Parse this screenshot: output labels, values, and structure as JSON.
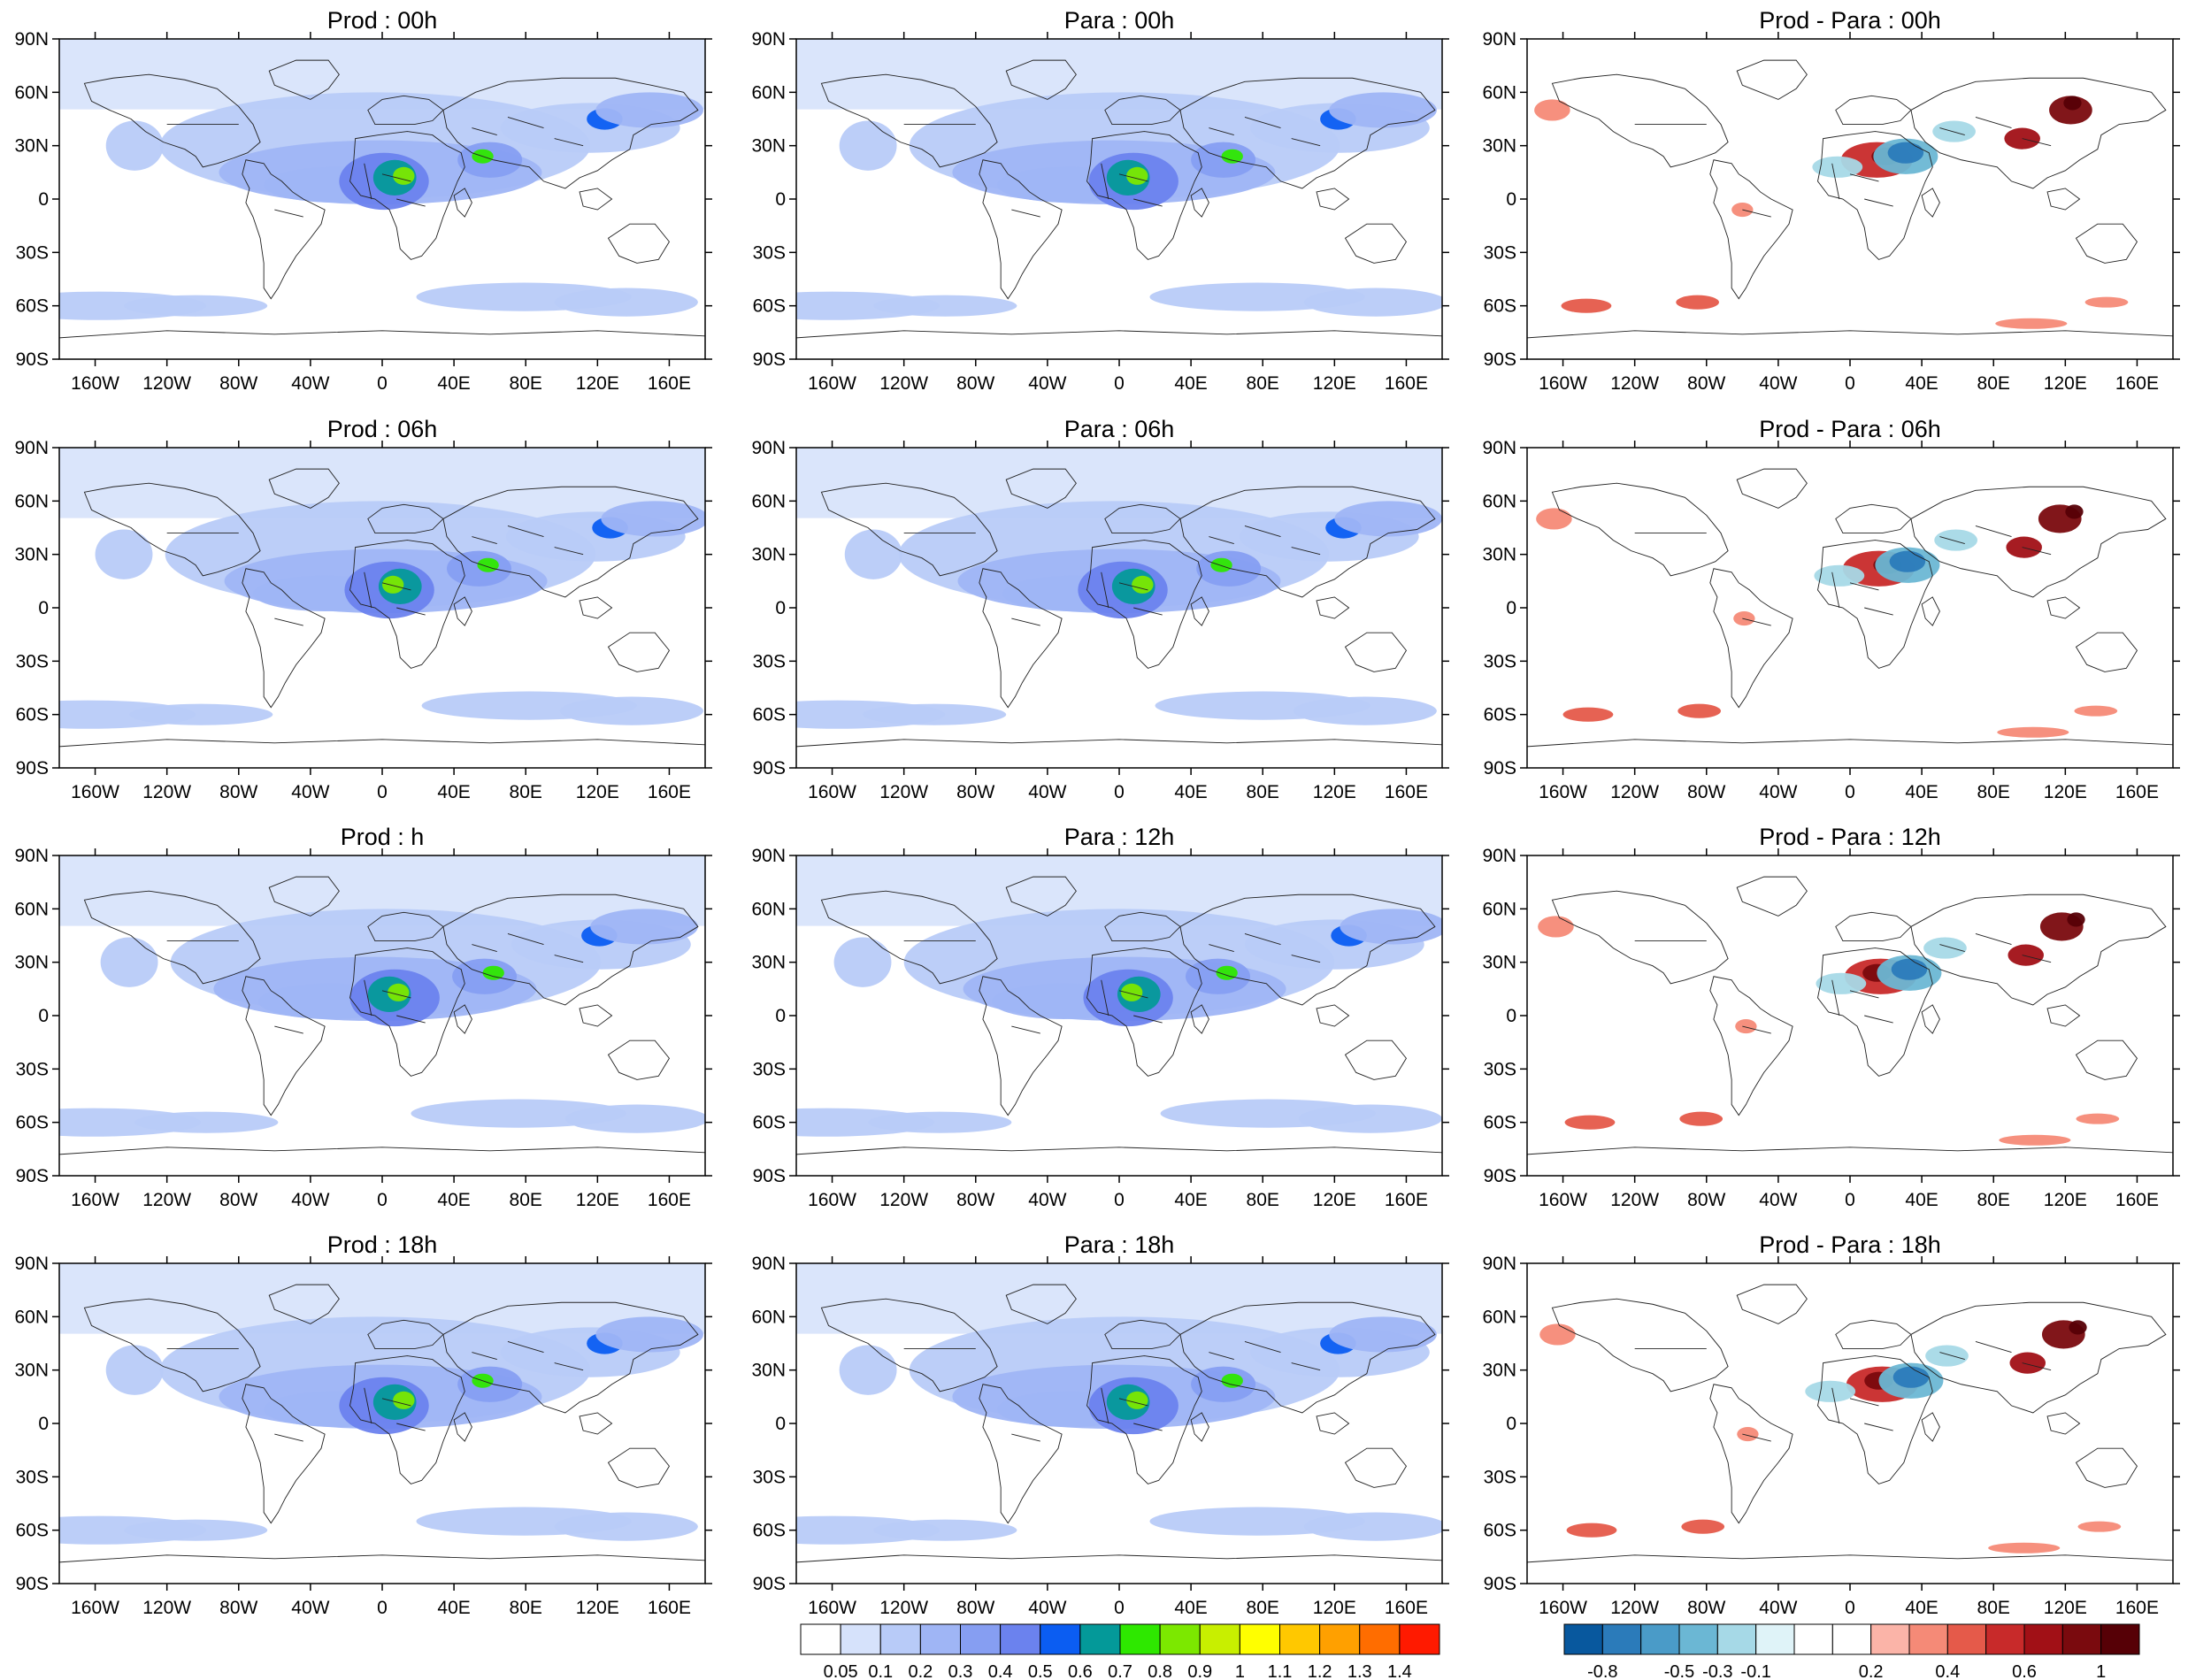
{
  "panels": [
    {
      "title": "Prod : 00h",
      "kind": "seq"
    },
    {
      "title": "Para : 00h",
      "kind": "seq"
    },
    {
      "title": "Prod - Para : 00h",
      "kind": "diff"
    },
    {
      "title": "Prod : 06h",
      "kind": "seq"
    },
    {
      "title": "Para : 06h",
      "kind": "seq"
    },
    {
      "title": "Prod - Para : 06h",
      "kind": "diff"
    },
    {
      "title": "Prod : h",
      "kind": "seq"
    },
    {
      "title": "Para : 12h",
      "kind": "seq"
    },
    {
      "title": "Prod - Para : 12h",
      "kind": "diff"
    },
    {
      "title": "Prod : 18h",
      "kind": "seq"
    },
    {
      "title": "Para : 18h",
      "kind": "seq"
    },
    {
      "title": "Prod - Para : 18h",
      "kind": "diff"
    }
  ],
  "lat_labels": [
    "90N",
    "60N",
    "30N",
    "0",
    "30S",
    "60S",
    "90S"
  ],
  "lon_labels": [
    "160W",
    "120W",
    "80W",
    "40W",
    "0",
    "40E",
    "80E",
    "120E",
    "160E"
  ],
  "colorbars": [
    {
      "name": "sequential",
      "labels": [
        "0.05",
        "0.1",
        "0.2",
        "0.3",
        "0.4",
        "0.5",
        "0.6",
        "0.7",
        "0.8",
        "0.9",
        "1",
        "1.1",
        "1.2",
        "1.3",
        "1.4"
      ],
      "colors": [
        "#ffffff",
        "#d6e2fb",
        "#b8cbf8",
        "#9fb5f5",
        "#869ef2",
        "#6b82ee",
        "#0b5df2",
        "#049999",
        "#2ee800",
        "#7ce800",
        "#c8ef00",
        "#ffff00",
        "#ffc800",
        "#ffa000",
        "#ff6d00",
        "#ff1a00"
      ]
    },
    {
      "name": "difference",
      "labels": [
        "-0.8",
        "-0.5",
        "-0.3",
        "-0.1",
        "0.2",
        "0.4",
        "0.6",
        "1"
      ],
      "colors": [
        "#08589e",
        "#2b7bba",
        "#4a9bc8",
        "#6bb7d4",
        "#a6d9e7",
        "#dff3f8",
        "#ffffff",
        "#ffffff",
        "#fbb4a8",
        "#f58a77",
        "#e55a4a",
        "#c82a2a",
        "#a11016",
        "#7a0a0e",
        "#560006"
      ]
    }
  ]
}
